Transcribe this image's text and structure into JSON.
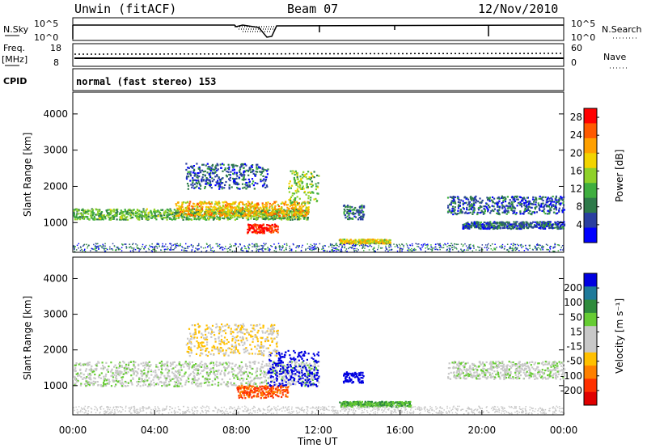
{
  "header": {
    "station": "Unwin (fitACF)",
    "beam": "Beam 07",
    "date": "12/Nov/2010"
  },
  "top_panels": {
    "nsky_label": "N.Sky",
    "nsky_ticks": [
      "10^5",
      "10^0"
    ],
    "nsearch_label": "N.Search",
    "nsearch_ticks": [
      "10^5",
      "10^0"
    ],
    "freq_label": "Freq.",
    "freq_unit": "[MHz]",
    "freq_ticks": [
      "18",
      "8"
    ],
    "nave_label": "Nave",
    "nave_ticks": [
      "60",
      "0"
    ],
    "cpid_label": "CPID",
    "cpid_text": "normal (fast stereo) 153"
  },
  "colors": {
    "power": [
      "#0000ff",
      "#2a3fa0",
      "#2e7a4a",
      "#3fae3f",
      "#8fd12a",
      "#f2d400",
      "#ffa000",
      "#ff5a00",
      "#ff0000"
    ],
    "velocity": [
      "#0000e0",
      "#1f7a9a",
      "#2e8b3c",
      "#66cc33",
      "#c8c8c8",
      "#c8c8c8",
      "#ffc000",
      "#ff8000",
      "#ff3000",
      "#e00000"
    ]
  },
  "chart_data": [
    {
      "type": "heatmap",
      "name": "Power",
      "xlabel": "Time UT",
      "ylabel": "Slant Range [km]",
      "x_ticks": [
        "00:00",
        "04:00",
        "08:00",
        "12:00",
        "16:00",
        "20:00",
        "00:00"
      ],
      "x_range_hours": [
        0,
        24
      ],
      "y_ticks": [
        1000,
        2000,
        3000,
        4000
      ],
      "ylim": [
        180,
        4600
      ],
      "colorbar_label": "Power [dB]",
      "colorbar_ticks": [
        4,
        8,
        12,
        16,
        20,
        24,
        28
      ],
      "colorbar_range": [
        0,
        30
      ],
      "scatter_regions": [
        {
          "t_start": 0.0,
          "t_end": 11.5,
          "range_center": 1250,
          "range_width": 300,
          "level": 12
        },
        {
          "t_start": 5.0,
          "t_end": 11.5,
          "range_center": 1400,
          "range_width": 400,
          "level": 20
        },
        {
          "t_start": 8.5,
          "t_end": 10.0,
          "range_center": 850,
          "range_width": 250,
          "level": 28
        },
        {
          "t_start": 5.5,
          "t_end": 9.5,
          "range_center": 2300,
          "range_width": 700,
          "level": 6
        },
        {
          "t_start": 10.5,
          "t_end": 12.0,
          "range_center": 2000,
          "range_width": 900,
          "level": 14
        },
        {
          "t_start": 13.2,
          "t_end": 14.2,
          "range_center": 1300,
          "range_width": 400,
          "level": 8
        },
        {
          "t_start": 13.0,
          "t_end": 15.5,
          "range_center": 500,
          "range_width": 120,
          "level": 18
        },
        {
          "t_start": 18.3,
          "t_end": 24.0,
          "range_center": 1500,
          "range_width": 500,
          "level": 6
        },
        {
          "t_start": 19.0,
          "t_end": 24.0,
          "range_center": 950,
          "range_width": 200,
          "level": 6
        }
      ]
    },
    {
      "type": "heatmap",
      "name": "Velocity",
      "xlabel": "Time UT",
      "ylabel": "Slant Range [km]",
      "x_ticks": [
        "00:00",
        "04:00",
        "08:00",
        "12:00",
        "16:00",
        "20:00",
        "00:00"
      ],
      "x_range_hours": [
        0,
        24
      ],
      "y_ticks": [
        1000,
        2000,
        3000,
        4000
      ],
      "ylim": [
        180,
        4600
      ],
      "colorbar_label": "Velocity [m s⁻¹]",
      "colorbar_ticks": [
        200,
        100,
        50,
        15,
        -15,
        -50,
        -100,
        -200
      ],
      "scatter_regions": [
        {
          "t_start": 0.0,
          "t_end": 12.0,
          "range_center": 1350,
          "range_width": 700,
          "level": 0
        },
        {
          "t_start": 8.0,
          "t_end": 10.5,
          "range_center": 850,
          "range_width": 350,
          "level": -200
        },
        {
          "t_start": 9.5,
          "t_end": 12.0,
          "range_center": 1500,
          "range_width": 1000,
          "level": 200
        },
        {
          "t_start": 5.5,
          "t_end": 10.0,
          "range_center": 2300,
          "range_width": 900,
          "level": -50
        },
        {
          "t_start": 13.2,
          "t_end": 14.2,
          "range_center": 1250,
          "range_width": 300,
          "level": 200
        },
        {
          "t_start": 13.0,
          "t_end": 16.5,
          "range_center": 500,
          "range_width": 150,
          "level": 50
        },
        {
          "t_start": 18.3,
          "t_end": 24.0,
          "range_center": 1450,
          "range_width": 500,
          "level": 0
        }
      ]
    }
  ]
}
